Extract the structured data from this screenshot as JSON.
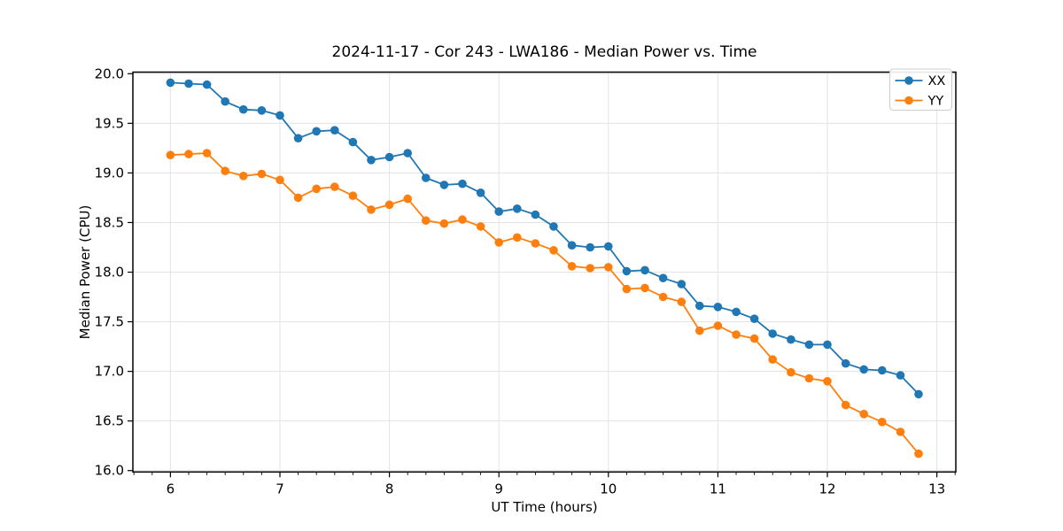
{
  "figure": {
    "background": "#ffffff"
  },
  "chart_data": {
    "type": "line",
    "title": "2024-11-17 - Cor 243 - LWA186 - Median Power vs. Time",
    "xlabel": "UT Time (hours)",
    "ylabel": "Median Power (CPU)",
    "xlim": [
      5.657,
      13.173
    ],
    "ylim": [
      15.986,
      20.016
    ],
    "x_ticks": [
      6,
      7,
      8,
      9,
      10,
      11,
      12,
      13
    ],
    "y_ticks": [
      16.0,
      16.5,
      17.0,
      17.5,
      18.0,
      18.5,
      19.0,
      19.5,
      20.0
    ],
    "x_minor_step": 0.1666667,
    "grid": true,
    "grid_color": "#e3e3e3",
    "legend_position": "upper right",
    "x": [
      6.0,
      6.167,
      6.333,
      6.5,
      6.667,
      6.833,
      7.0,
      7.167,
      7.333,
      7.5,
      7.667,
      7.833,
      8.0,
      8.167,
      8.333,
      8.5,
      8.667,
      8.833,
      9.0,
      9.167,
      9.333,
      9.5,
      9.667,
      9.833,
      10.0,
      10.167,
      10.333,
      10.5,
      10.667,
      10.833,
      11.0,
      11.167,
      11.333,
      11.5,
      11.667,
      11.833,
      12.0,
      12.167,
      12.333,
      12.5,
      12.667,
      12.833
    ],
    "series": [
      {
        "name": "XX",
        "color": "#1f77b4",
        "values": [
          19.91,
          19.9,
          19.89,
          19.72,
          19.64,
          19.63,
          19.58,
          19.35,
          19.42,
          19.43,
          19.31,
          19.13,
          19.16,
          19.2,
          18.95,
          18.88,
          18.89,
          18.8,
          18.61,
          18.64,
          18.58,
          18.46,
          18.27,
          18.25,
          18.26,
          18.01,
          18.02,
          17.94,
          17.88,
          17.66,
          17.65,
          17.6,
          17.53,
          17.38,
          17.32,
          17.27,
          17.27,
          17.08,
          17.02,
          17.01,
          16.96,
          16.77
        ]
      },
      {
        "name": "YY",
        "color": "#ff7f0e",
        "values": [
          19.18,
          19.19,
          19.2,
          19.02,
          18.97,
          18.99,
          18.93,
          18.75,
          18.84,
          18.86,
          18.77,
          18.63,
          18.68,
          18.74,
          18.52,
          18.49,
          18.53,
          18.46,
          18.3,
          18.35,
          18.29,
          18.22,
          18.06,
          18.04,
          18.05,
          17.83,
          17.84,
          17.75,
          17.7,
          17.41,
          17.46,
          17.37,
          17.33,
          17.12,
          16.99,
          16.93,
          16.9,
          16.66,
          16.57,
          16.49,
          16.39,
          16.17
        ]
      }
    ]
  }
}
